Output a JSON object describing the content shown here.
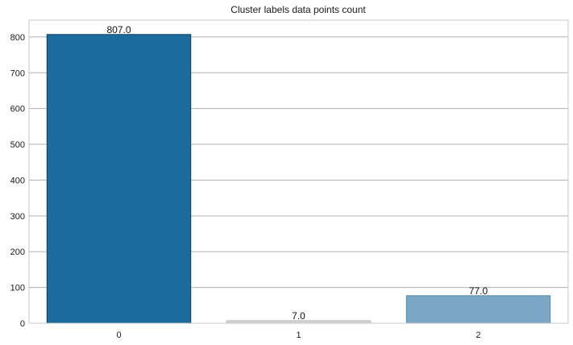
{
  "chart_data": {
    "type": "bar",
    "title": "Cluster labels data points count",
    "xlabel": "",
    "ylabel": "",
    "categories": [
      "0",
      "1",
      "2"
    ],
    "values": [
      807.0,
      7.0,
      77.0
    ],
    "data_labels": [
      "807.0",
      "7.0",
      "77.0"
    ],
    "ylim": [
      0,
      847
    ],
    "yticks": [
      0,
      100,
      200,
      300,
      400,
      500,
      600,
      700,
      800
    ],
    "grid": "horizontal",
    "colors": [
      "#1b6b9c",
      "#d4d4d4",
      "#7ba7c4"
    ],
    "edge_colors": [
      "#0f3f5c",
      "#b8b8b8",
      "#5a88a8"
    ]
  }
}
